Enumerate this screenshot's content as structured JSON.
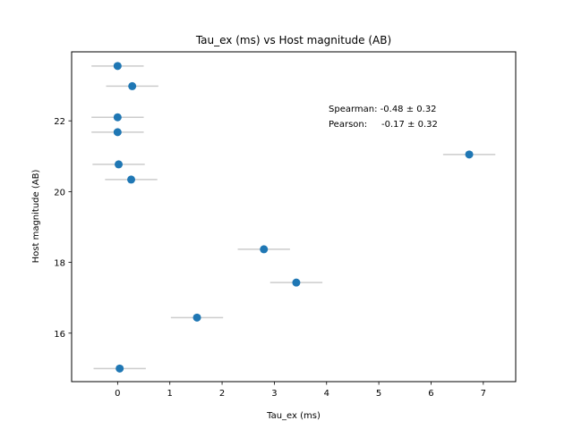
{
  "chart_data": {
    "type": "scatter",
    "title": "Tau_ex (ms) vs Host magnitude (AB)",
    "xlabel": "Tau_ex (ms)",
    "ylabel": "Host magnitude (AB)",
    "xlim": [
      -0.88,
      7.62
    ],
    "ylim": [
      14.63,
      23.95
    ],
    "xticks": [
      0,
      1,
      2,
      3,
      4,
      5,
      6,
      7
    ],
    "yticks": [
      16,
      18,
      20,
      22
    ],
    "grid": false,
    "annotations": [
      "Spearman: -0.48 ± 0.32",
      "Pearson:     -0.17 ± 0.32"
    ],
    "point_color": "#1f77b4",
    "errorbar_color": "#cccccc",
    "points": [
      {
        "x": 0.0,
        "y": 23.55,
        "xerr": 0.5
      },
      {
        "x": 0.28,
        "y": 22.98,
        "xerr": 0.5
      },
      {
        "x": 0.0,
        "y": 22.1,
        "xerr": 0.5
      },
      {
        "x": 0.0,
        "y": 21.68,
        "xerr": 0.5
      },
      {
        "x": 0.02,
        "y": 20.77,
        "xerr": 0.5
      },
      {
        "x": 0.26,
        "y": 20.34,
        "xerr": 0.5
      },
      {
        "x": 6.73,
        "y": 21.05,
        "xerr": 0.5
      },
      {
        "x": 2.8,
        "y": 18.37,
        "xerr": 0.5
      },
      {
        "x": 3.42,
        "y": 17.43,
        "xerr": 0.5
      },
      {
        "x": 1.52,
        "y": 16.44,
        "xerr": 0.5
      },
      {
        "x": 0.04,
        "y": 15.0,
        "xerr": 0.5
      }
    ]
  }
}
